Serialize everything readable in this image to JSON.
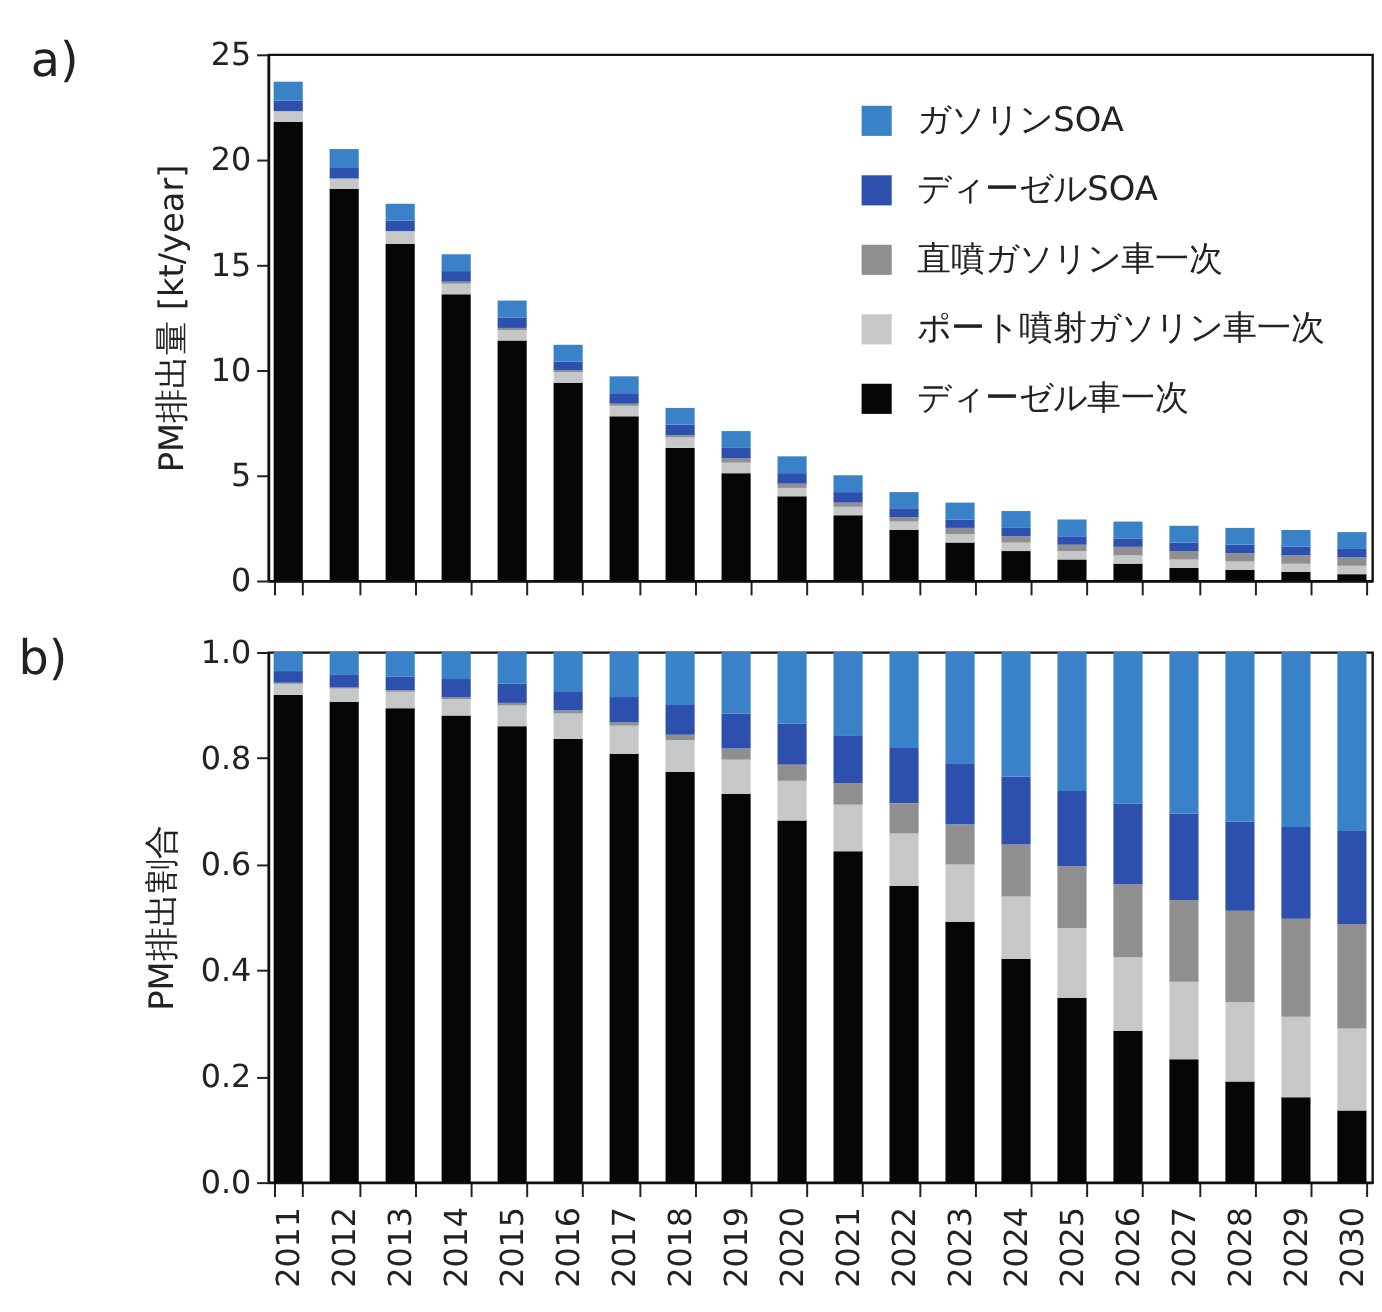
{
  "chart_data": [
    {
      "type": "bar",
      "title": "a)",
      "ylabel": "PM排出量 [kt/year]",
      "stacked": true,
      "legend": "top right",
      "tick_labels": "y",
      "categories": [
        "2011",
        "2012",
        "2013",
        "2014",
        "2015",
        "2016",
        "2017",
        "2018",
        "2019",
        "2020",
        "2021",
        "2022",
        "2023",
        "2024",
        "2025",
        "2026",
        "2027",
        "2028",
        "2029",
        "2030"
      ],
      "ylim": [
        0,
        25
      ],
      "yticks": [
        0,
        5,
        10,
        15,
        20,
        25
      ],
      "series": [
        {
          "name": "ディーゼル車一次",
          "color": "#060606",
          "values": [
            21.8,
            18.6,
            16.0,
            13.6,
            11.4,
            9.4,
            7.8,
            6.3,
            5.1,
            4.0,
            3.1,
            2.4,
            1.8,
            1.4,
            1.0,
            0.8,
            0.6,
            0.5,
            0.4,
            0.3
          ]
        },
        {
          "name": "ポート噴射ガソリン車一次",
          "color": "#c5c7c8",
          "values": [
            0.5,
            0.5,
            0.6,
            0.5,
            0.5,
            0.5,
            0.5,
            0.5,
            0.5,
            0.4,
            0.4,
            0.4,
            0.4,
            0.4,
            0.4,
            0.4,
            0.4,
            0.4,
            0.4,
            0.4
          ]
        },
        {
          "name": "直噴ガソリン車一次",
          "color": "#8f8f90",
          "values": [
            0.0,
            0.0,
            0.0,
            0.1,
            0.1,
            0.1,
            0.1,
            0.1,
            0.2,
            0.2,
            0.2,
            0.2,
            0.3,
            0.3,
            0.3,
            0.4,
            0.4,
            0.4,
            0.4,
            0.4
          ]
        },
        {
          "name": "ディーゼルSOA",
          "color": "#2d4fae",
          "values": [
            0.5,
            0.5,
            0.5,
            0.5,
            0.5,
            0.4,
            0.5,
            0.5,
            0.5,
            0.5,
            0.5,
            0.4,
            0.4,
            0.4,
            0.4,
            0.4,
            0.4,
            0.4,
            0.4,
            0.4
          ]
        },
        {
          "name": "ガソリンSOA",
          "color": "#3a82c8",
          "values": [
            0.9,
            0.9,
            0.8,
            0.8,
            0.8,
            0.8,
            0.8,
            0.8,
            0.8,
            0.8,
            0.8,
            0.8,
            0.8,
            0.8,
            0.8,
            0.8,
            0.8,
            0.8,
            0.8,
            0.8
          ]
        }
      ]
    },
    {
      "type": "bar",
      "title": "b)",
      "ylabel": "PM排出割合",
      "stacked": true,
      "categories": [
        "2011",
        "2012",
        "2013",
        "2014",
        "2015",
        "2016",
        "2017",
        "2018",
        "2019",
        "2020",
        "2021",
        "2022",
        "2023",
        "2024",
        "2025",
        "2026",
        "2027",
        "2028",
        "2029",
        "2030"
      ],
      "ylim": [
        0,
        1
      ],
      "yticks": [
        {
          "value": 0,
          "label": "0.0"
        },
        0.2,
        0.4,
        0.6,
        0.8,
        {
          "value": 1,
          "label": "1.0"
        }
      ],
      "series": [
        {
          "color": "#060606",
          "values": [
            0.919,
            0.906,
            0.894,
            0.88,
            0.86,
            0.836,
            0.808,
            0.774,
            0.732,
            0.682,
            0.624,
            0.559,
            0.491,
            0.421,
            0.348,
            0.285,
            0.232,
            0.19,
            0.16,
            0.135
          ]
        },
        {
          "color": "#c5c7c8",
          "values": [
            0.021,
            0.025,
            0.031,
            0.031,
            0.039,
            0.048,
            0.053,
            0.06,
            0.065,
            0.075,
            0.088,
            0.099,
            0.108,
            0.118,
            0.131,
            0.139,
            0.146,
            0.15,
            0.152,
            0.155
          ]
        },
        {
          "color": "#8f8f90",
          "values": [
            0.002,
            0.002,
            0.003,
            0.004,
            0.005,
            0.006,
            0.007,
            0.01,
            0.021,
            0.031,
            0.041,
            0.057,
            0.076,
            0.098,
            0.117,
            0.138,
            0.154,
            0.172,
            0.185,
            0.197
          ]
        },
        {
          "color": "#2d4fae",
          "values": [
            0.022,
            0.025,
            0.026,
            0.034,
            0.036,
            0.036,
            0.047,
            0.056,
            0.066,
            0.077,
            0.09,
            0.104,
            0.115,
            0.128,
            0.142,
            0.152,
            0.163,
            0.168,
            0.173,
            0.177
          ]
        },
        {
          "color": "#3a82c8",
          "values": [
            0.036,
            0.042,
            0.046,
            0.051,
            0.06,
            0.074,
            0.085,
            0.1,
            0.116,
            0.135,
            0.157,
            0.181,
            0.21,
            0.235,
            0.262,
            0.286,
            0.305,
            0.32,
            0.33,
            0.336
          ]
        }
      ]
    }
  ]
}
